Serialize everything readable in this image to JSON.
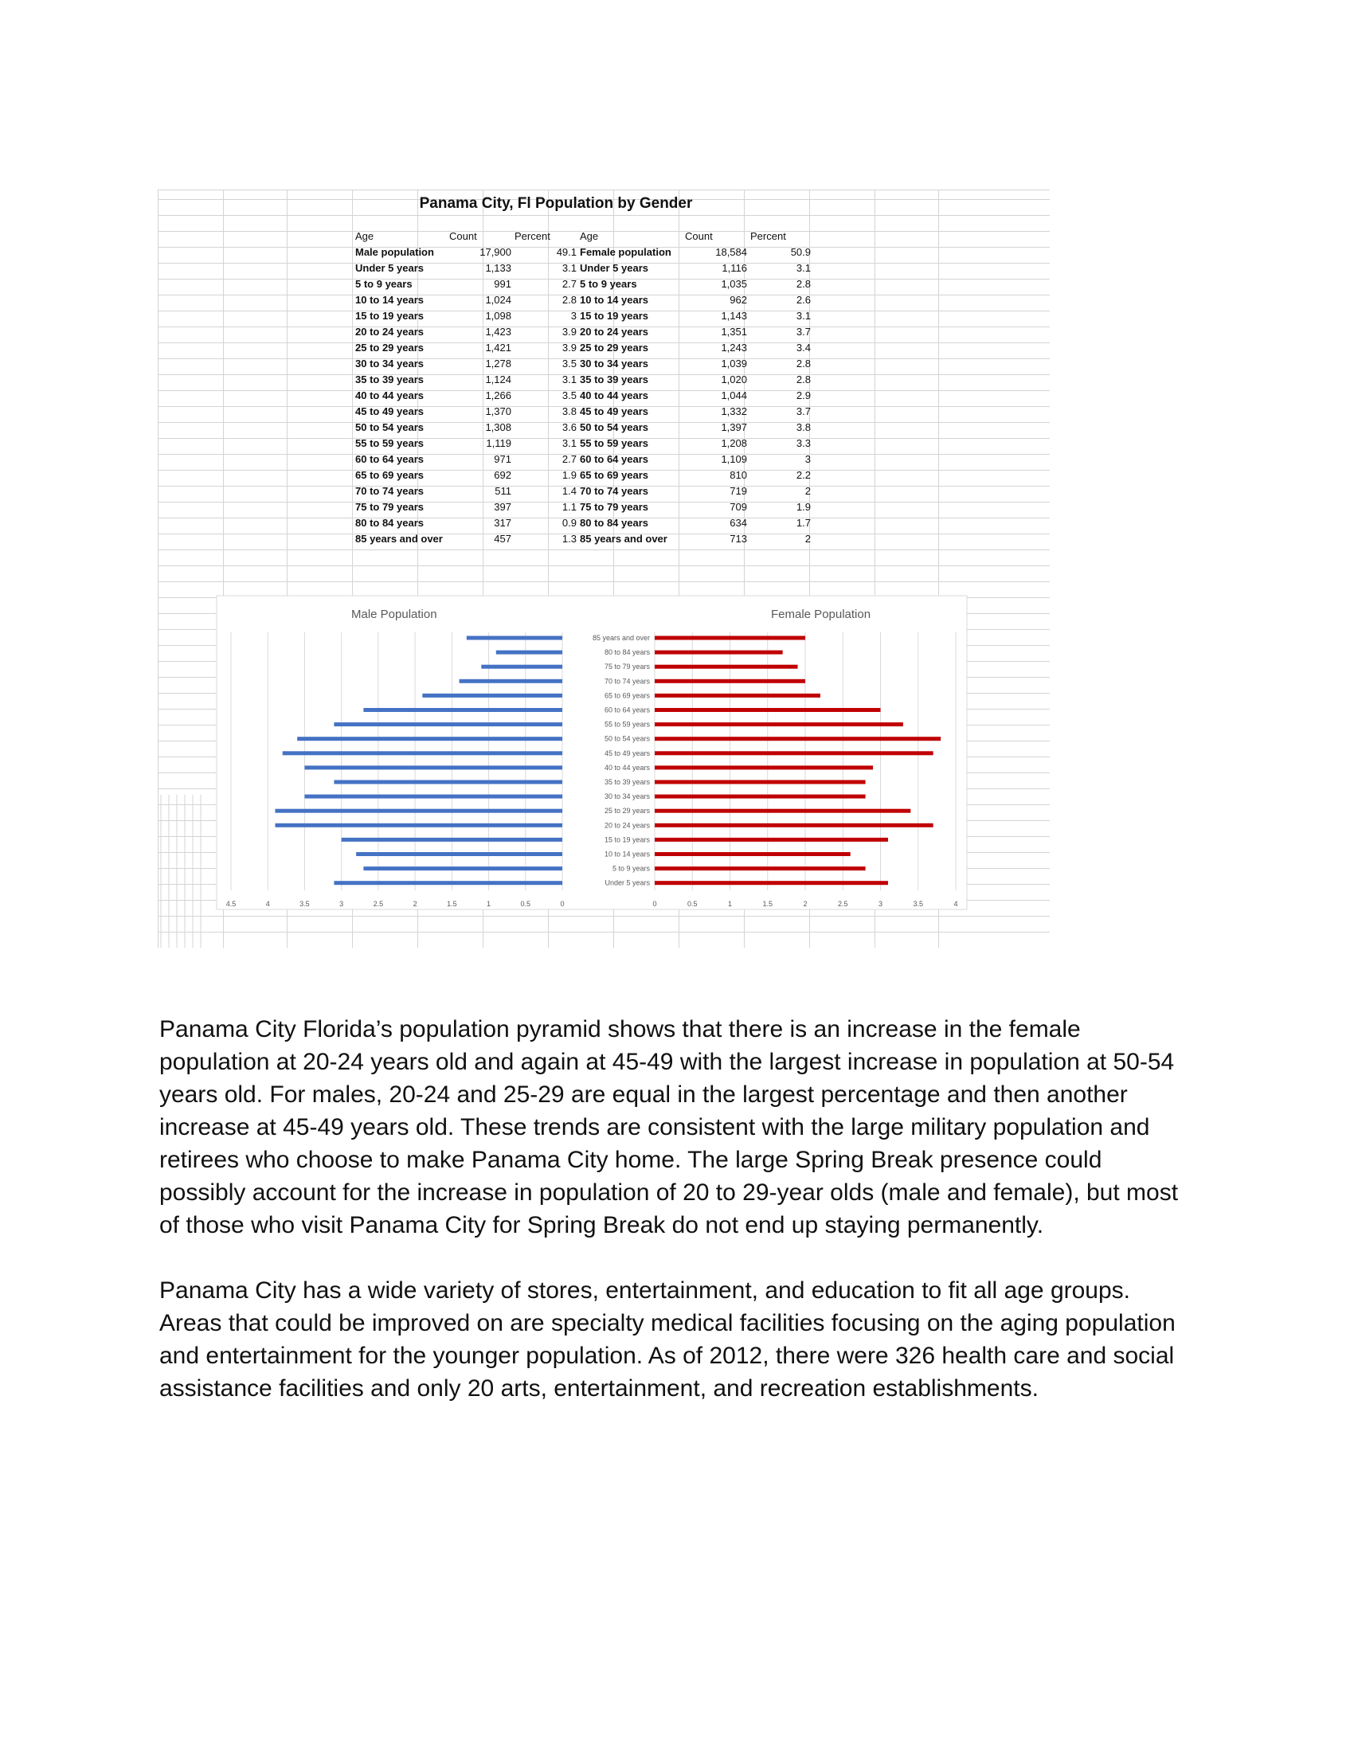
{
  "sheet": {
    "title": "Panama City, Fl Population by Gender",
    "male_headers": [
      "Age",
      "Count",
      "Percent"
    ],
    "female_headers": [
      "Age",
      "Count",
      "Percent"
    ],
    "male_rows": [
      [
        "Male population",
        "17,900",
        "49.1"
      ],
      [
        "Under 5 years",
        "1,133",
        "3.1"
      ],
      [
        "5 to 9 years",
        "991",
        "2.7"
      ],
      [
        "10 to 14 years",
        "1,024",
        "2.8"
      ],
      [
        "15 to 19 years",
        "1,098",
        "3"
      ],
      [
        "20 to 24 years",
        "1,423",
        "3.9"
      ],
      [
        "25 to 29 years",
        "1,421",
        "3.9"
      ],
      [
        "30 to 34 years",
        "1,278",
        "3.5"
      ],
      [
        "35 to 39 years",
        "1,124",
        "3.1"
      ],
      [
        "40 to 44 years",
        "1,266",
        "3.5"
      ],
      [
        "45 to 49 years",
        "1,370",
        "3.8"
      ],
      [
        "50 to 54 years",
        "1,308",
        "3.6"
      ],
      [
        "55 to 59 years",
        "1,119",
        "3.1"
      ],
      [
        "60 to 64 years",
        "971",
        "2.7"
      ],
      [
        "65 to 69 years",
        "692",
        "1.9"
      ],
      [
        "70 to 74 years",
        "511",
        "1.4"
      ],
      [
        "75 to 79 years",
        "397",
        "1.1"
      ],
      [
        "80 to 84 years",
        "317",
        "0.9"
      ],
      [
        "85 years and over",
        "457",
        "1.3"
      ]
    ],
    "female_rows": [
      [
        "Female population",
        "18,584",
        "50.9"
      ],
      [
        "Under 5 years",
        "1,116",
        "3.1"
      ],
      [
        "5 to 9 years",
        "1,035",
        "2.8"
      ],
      [
        "10 to 14 years",
        "962",
        "2.6"
      ],
      [
        "15 to 19 years",
        "1,143",
        "3.1"
      ],
      [
        "20 to 24 years",
        "1,351",
        "3.7"
      ],
      [
        "25 to 29 years",
        "1,243",
        "3.4"
      ],
      [
        "30 to 34 years",
        "1,039",
        "2.8"
      ],
      [
        "35 to 39 years",
        "1,020",
        "2.8"
      ],
      [
        "40 to 44 years",
        "1,044",
        "2.9"
      ],
      [
        "45 to 49 years",
        "1,332",
        "3.7"
      ],
      [
        "50 to 54 years",
        "1,397",
        "3.8"
      ],
      [
        "55 to 59 years",
        "1,208",
        "3.3"
      ],
      [
        "60 to 64 years",
        "1,109",
        "3"
      ],
      [
        "65 to 69 years",
        "810",
        "2.2"
      ],
      [
        "70 to 74 years",
        "719",
        "2"
      ],
      [
        "75 to 79 years",
        "709",
        "1.9"
      ],
      [
        "80 to 84 years",
        "634",
        "1.7"
      ],
      [
        "85 years and over",
        "713",
        "2"
      ]
    ]
  },
  "chart_data": [
    {
      "type": "bar",
      "orientation": "horizontal",
      "title": "Male Population",
      "categories": [
        "85 years and over",
        "80 to 84 years",
        "75 to 79 years",
        "70 to 74 years",
        "65 to 69 years",
        "60 to 64 years",
        "55 to 59 years",
        "50 to 54 years",
        "45 to 49 years",
        "40 to 44 years",
        "35 to 39 years",
        "30 to 34 years",
        "25 to 29 years",
        "20 to 24 years",
        "15 to 19 years",
        "10 to 14 years",
        "5 to 9 years",
        "Under 5 years"
      ],
      "values": [
        1.3,
        0.9,
        1.1,
        1.4,
        1.9,
        2.7,
        3.1,
        3.6,
        3.8,
        3.5,
        3.1,
        3.5,
        3.9,
        3.9,
        3,
        2.8,
        2.7,
        3.1
      ],
      "xlim": [
        0,
        4.5
      ],
      "x_reversed": true,
      "xticks": [
        "4.5",
        "4",
        "3.5",
        "3",
        "2.5",
        "2",
        "1.5",
        "1",
        "0.5",
        "0"
      ],
      "color": "#4472c4",
      "grid": true
    },
    {
      "type": "bar",
      "orientation": "horizontal",
      "title": "Female Population",
      "categories": [
        "85 years and over",
        "80 to 84 years",
        "75 to 79 years",
        "70 to 74 years",
        "65 to 69 years",
        "60 to 64 years",
        "55 to 59 years",
        "50 to 54 years",
        "45 to 49 years",
        "40 to 44 years",
        "35 to 39 years",
        "30 to 34 years",
        "25 to 29 years",
        "20 to 24 years",
        "15 to 19 years",
        "10 to 14 years",
        "5 to 9 years",
        "Under 5 years"
      ],
      "values": [
        2,
        1.7,
        1.9,
        2,
        2.2,
        3,
        3.3,
        3.8,
        3.7,
        2.9,
        2.8,
        2.8,
        3.4,
        3.7,
        3.1,
        2.6,
        2.8,
        3.1
      ],
      "xlim": [
        0,
        4
      ],
      "xticks": [
        "0",
        "0.5",
        "1",
        "1.5",
        "2",
        "2.5",
        "3",
        "3.5",
        "4"
      ],
      "color": "#c00000",
      "grid": true
    }
  ],
  "body": {
    "paragraph1": "Panama City Florida’s population pyramid shows that there is an increase in the female population at 20-24 years old and again at 45-49 with the largest increase in population at 50-54 years old.  For males, 20-24 and 25-29 are equal in the largest percentage and then another increase at 45-49 years old.  These trends are consistent with the large military population and retirees who choose to make Panama City home.  The large Spring Break presence could possibly account for the increase in population of 20 to 29-year olds (male and female), but most of those who visit Panama City for Spring Break do not end up staying permanently.",
    "paragraph2": "Panama City has a wide variety of stores, entertainment, and education to fit all age groups.  Areas that could be improved on are specialty medical facilities focusing on the aging population and entertainment for the younger population.  As of 2012, there were 326 health care and social assistance facilities and only 20 arts, entertainment, and recreation establishments."
  }
}
